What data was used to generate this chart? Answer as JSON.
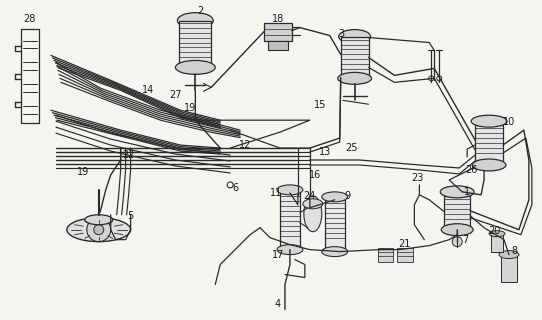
{
  "background_color": "#f5f5f0",
  "line_color": "#2a2a2a",
  "label_color": "#1a1a1a",
  "label_fontsize": 7.0,
  "fig_width": 5.42,
  "fig_height": 3.2,
  "dpi": 100
}
